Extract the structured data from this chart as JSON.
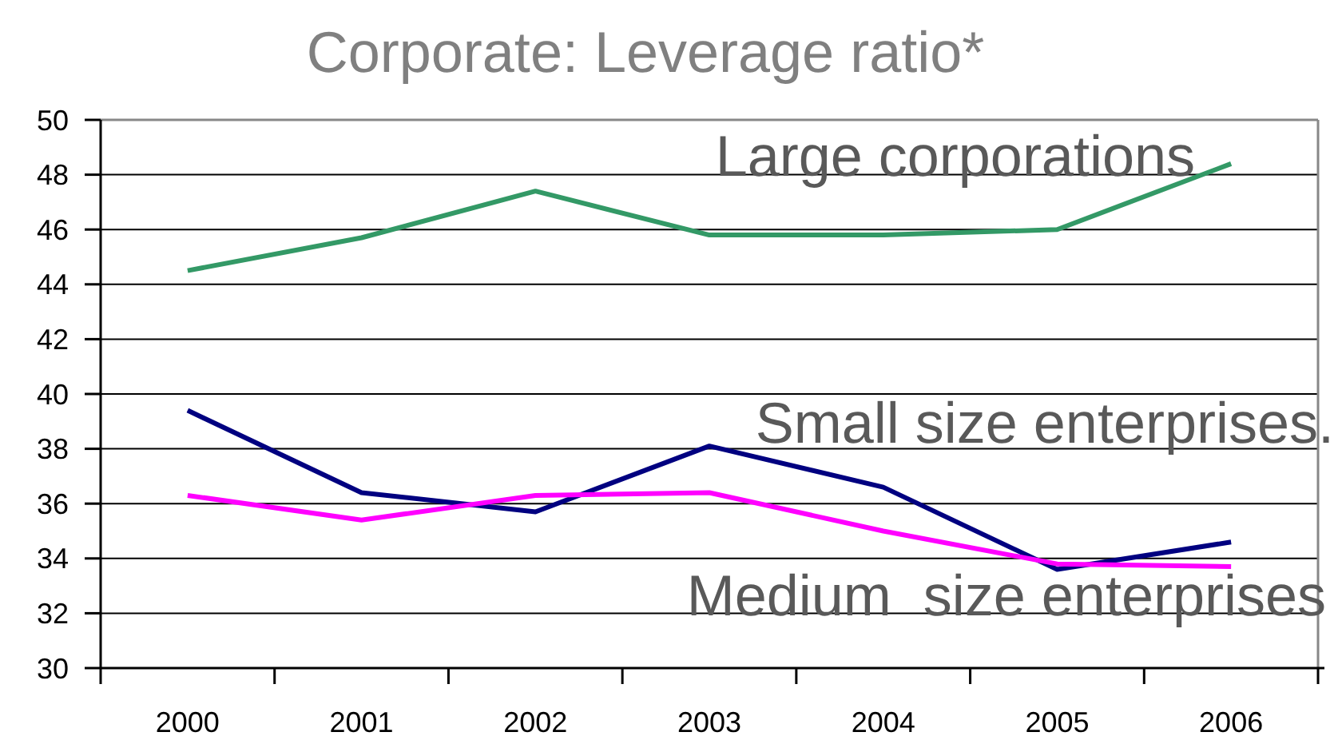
{
  "chart_data": {
    "type": "line",
    "title": "Corporate: Leverage ratio*",
    "categories": [
      "2000",
      "2001",
      "2002",
      "2003",
      "2004",
      "2005",
      "2006"
    ],
    "series": [
      {
        "name": "Large corporations",
        "color": "#339966",
        "values": [
          44.5,
          45.7,
          47.4,
          45.8,
          45.8,
          46.0,
          48.4
        ]
      },
      {
        "name": "Small size enterprises.",
        "color": "#000080",
        "values": [
          39.4,
          36.4,
          35.7,
          38.1,
          36.6,
          33.6,
          34.6
        ]
      },
      {
        "name": "Medium  size enterprises",
        "color": "#ff00ff",
        "values": [
          36.3,
          35.4,
          36.3,
          36.4,
          35.0,
          33.8,
          33.7
        ]
      }
    ],
    "ylim": [
      30,
      50
    ],
    "yticks": [
      30,
      32,
      34,
      36,
      38,
      40,
      42,
      44,
      46,
      48,
      50
    ],
    "grid": "y",
    "line_style": "solid"
  }
}
